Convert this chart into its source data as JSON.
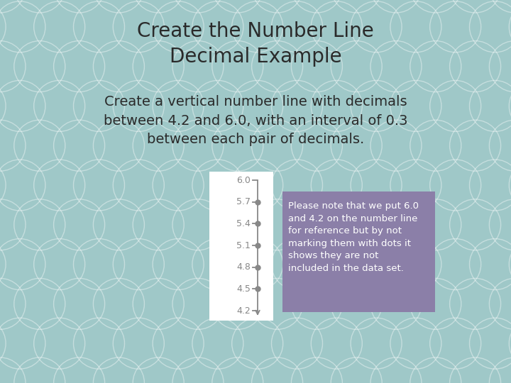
{
  "title": "Create the Number Line\nDecimal Example",
  "subtitle": "Create a vertical number line with decimals\nbetween 4.2 and 6.0, with an interval of 0.3\nbetween each pair of decimals.",
  "bg_color": "#9fc8c8",
  "panel_color": "#ffffff",
  "note_box_color": "#8b7fa8",
  "note_text": "Please note that we put 6.0\nand 4.2 on the number line\nfor reference but by not\nmarking them with dots it\nshows they are not\nincluded in the data set.",
  "tick_values": [
    4.2,
    4.5,
    4.8,
    5.1,
    5.4,
    5.7,
    6.0
  ],
  "dot_values": [
    4.5,
    4.8,
    5.1,
    5.4,
    5.7
  ],
  "no_dot_values": [
    4.2,
    6.0
  ],
  "axis_color": "#888888",
  "tick_color": "#888888",
  "label_color": "#888888",
  "dot_color": "#888888",
  "title_fontsize": 20,
  "subtitle_fontsize": 14,
  "note_fontsize": 9.5,
  "tick_label_fontsize": 9
}
